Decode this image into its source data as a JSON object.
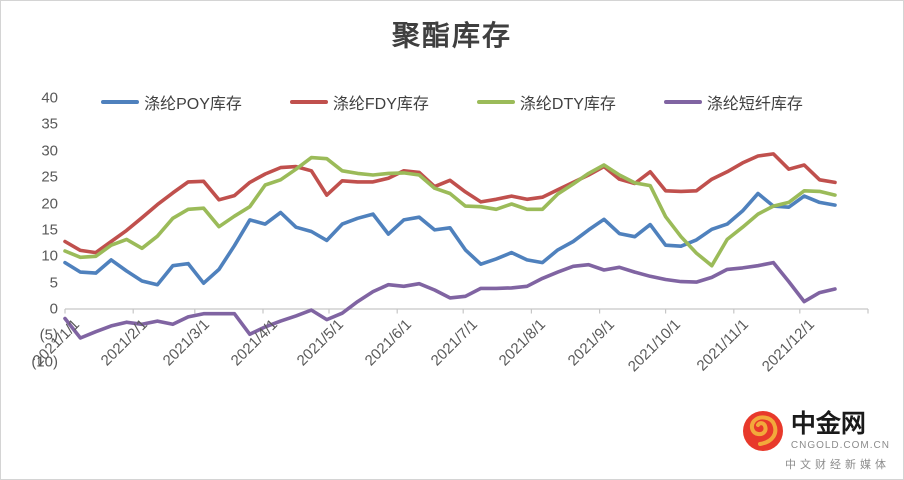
{
  "chart_data": {
    "type": "line",
    "title": "聚酯库存",
    "grid": false,
    "legend_position": "top",
    "ylim": [
      -10,
      40
    ],
    "y_ticks": [
      {
        "label": "40",
        "value": 40
      },
      {
        "label": "35",
        "value": 35
      },
      {
        "label": "30",
        "value": 30
      },
      {
        "label": "25",
        "value": 25
      },
      {
        "label": "20",
        "value": 20
      },
      {
        "label": "15",
        "value": 15
      },
      {
        "label": "10",
        "value": 10
      },
      {
        "label": "5",
        "value": 5
      },
      {
        "label": "0",
        "value": 0
      },
      {
        "label": "(5)",
        "value": -5
      },
      {
        "label": "(10)",
        "value": -10
      }
    ],
    "x_tick_labels": [
      "2021/1/1",
      "2021/2/1",
      "2021/3/1",
      "2021/4/1",
      "2021/5/1",
      "2021/6/1",
      "2021/7/1",
      "2021/8/1",
      "2021/9/1",
      "2021/10/1",
      "2021/11/1",
      "2021/12/1"
    ],
    "x": [
      "2021/1/1",
      "2021/1/8",
      "2021/1/15",
      "2021/1/22",
      "2021/1/29",
      "2021/2/5",
      "2021/2/12",
      "2021/2/19",
      "2021/2/26",
      "2021/3/5",
      "2021/3/12",
      "2021/3/19",
      "2021/3/26",
      "2021/4/2",
      "2021/4/9",
      "2021/4/16",
      "2021/4/23",
      "2021/4/30",
      "2021/5/7",
      "2021/5/14",
      "2021/5/21",
      "2021/5/28",
      "2021/6/4",
      "2021/6/11",
      "2021/6/18",
      "2021/6/25",
      "2021/7/2",
      "2021/7/9",
      "2021/7/16",
      "2021/7/23",
      "2021/7/30",
      "2021/8/6",
      "2021/8/13",
      "2021/8/20",
      "2021/8/27",
      "2021/9/3",
      "2021/9/10",
      "2021/9/17",
      "2021/9/24",
      "2021/10/1",
      "2021/10/8",
      "2021/10/15",
      "2021/10/22",
      "2021/10/29",
      "2021/11/5",
      "2021/11/12",
      "2021/11/19",
      "2021/11/26",
      "2021/12/3",
      "2021/12/10",
      "2021/12/17"
    ],
    "series": [
      {
        "name": "涤纶POY库存",
        "color": "#4F81BD",
        "values": [
          8.8,
          7.0,
          6.8,
          9.3,
          7.2,
          5.3,
          4.6,
          8.2,
          8.6,
          4.9,
          7.5,
          12.0,
          16.9,
          16.1,
          18.3,
          15.5,
          14.7,
          13.0,
          16.1,
          17.2,
          18.0,
          14.2,
          16.9,
          17.4,
          15.0,
          15.4,
          11.2,
          8.5,
          9.5,
          10.7,
          9.3,
          8.8,
          11.2,
          12.8,
          15.0,
          17.0,
          14.3,
          13.7,
          16.0,
          12.1,
          11.9,
          13.1,
          15.1,
          16.1,
          18.6,
          21.9,
          19.5,
          19.3,
          21.4,
          20.2,
          19.7
        ]
      },
      {
        "name": "涤纶FDY库存",
        "color": "#C0504D",
        "values": [
          12.8,
          11.1,
          10.7,
          12.8,
          14.9,
          17.3,
          19.8,
          22.0,
          24.1,
          24.2,
          20.7,
          21.5,
          24.0,
          25.6,
          26.8,
          27.0,
          26.2,
          21.6,
          24.3,
          24.1,
          24.1,
          24.8,
          26.2,
          25.9,
          23.2,
          24.4,
          22.2,
          20.3,
          20.8,
          21.4,
          20.8,
          21.2,
          22.6,
          24.0,
          25.4,
          27.0,
          24.6,
          23.8,
          26.0,
          22.4,
          22.3,
          22.4,
          24.6,
          26.0,
          27.7,
          29.0,
          29.4,
          26.5,
          27.3,
          24.5,
          24.0
        ]
      },
      {
        "name": "涤纶DTY库存",
        "color": "#9BBB59",
        "values": [
          11.0,
          9.8,
          10.0,
          12.1,
          13.2,
          11.5,
          13.8,
          17.2,
          18.9,
          19.1,
          15.6,
          17.6,
          19.4,
          23.5,
          24.5,
          26.5,
          28.7,
          28.5,
          26.2,
          25.7,
          25.4,
          25.7,
          25.8,
          25.4,
          22.9,
          21.9,
          19.5,
          19.4,
          18.9,
          19.9,
          18.9,
          18.9,
          21.8,
          23.7,
          25.7,
          27.3,
          25.4,
          23.9,
          23.4,
          17.5,
          13.7,
          10.6,
          8.2,
          13.2,
          15.5,
          18.0,
          19.5,
          20.2,
          22.4,
          22.3,
          21.6
        ]
      },
      {
        "name": "涤纶短纤库存",
        "color": "#8064A2",
        "values": [
          -1.8,
          -5.5,
          -4.3,
          -3.2,
          -2.5,
          -2.9,
          -2.3,
          -2.9,
          -1.5,
          -0.9,
          -0.9,
          -0.9,
          -4.8,
          -3.4,
          -2.3,
          -1.3,
          -0.2,
          -2.0,
          -0.8,
          1.4,
          3.3,
          4.6,
          4.3,
          4.8,
          3.6,
          2.1,
          2.4,
          3.9,
          3.9,
          4.0,
          4.3,
          5.8,
          7.0,
          8.1,
          8.4,
          7.4,
          7.9,
          7.0,
          6.2,
          5.6,
          5.2,
          5.1,
          6.0,
          7.5,
          7.8,
          8.2,
          8.8,
          5.2,
          1.4,
          3.1,
          3.8
        ]
      }
    ]
  },
  "colors": {
    "axis_line": "#c6c6c6",
    "axis_text": "#595959",
    "title_text": "#3f3f3f",
    "logo_red": "#e8392b",
    "logo_gold": "#f2a93b"
  },
  "watermark": {
    "name": "中金网",
    "domain": "CNGOLD.COM.CN",
    "slogan": "中文财经新媒体"
  }
}
